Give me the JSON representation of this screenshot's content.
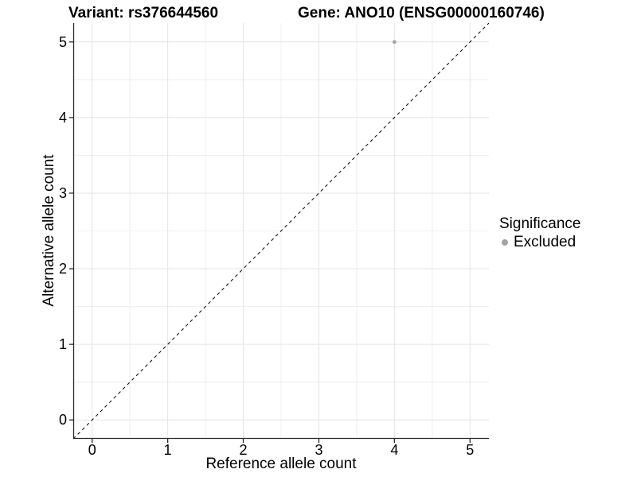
{
  "chart_data": {
    "type": "scatter",
    "title": "Variant: rs376644560          Gene: ANO10 (ENSG00000160746)",
    "title_parts": [
      "Variant: rs376644560",
      "Gene: ANO10 (ENSG00000160746)"
    ],
    "xlabel": "Reference allele count",
    "ylabel": "Alternative allele count",
    "xlim": [
      -0.25,
      5.25
    ],
    "ylim": [
      -0.25,
      5.25
    ],
    "x_ticks": [
      0,
      1,
      2,
      3,
      4,
      5
    ],
    "y_ticks": [
      0,
      1,
      2,
      3,
      4,
      5
    ],
    "grid": {
      "show": true,
      "major_color": "#e4e4e4",
      "minor_color": "#f0f0f0",
      "minor_offset": 0.5
    },
    "axis_color": "#2a2a2a",
    "background": "#ffffff",
    "reference_line": {
      "type": "identity",
      "slope": 1,
      "intercept": 0,
      "style": "dashed",
      "color": "#000000"
    },
    "series": [
      {
        "name": "Excluded",
        "color": "#a3a3a3",
        "points": [
          {
            "x": 4,
            "y": 5
          }
        ]
      }
    ],
    "legend": {
      "title": "Significance",
      "position": "right",
      "entries": [
        {
          "label": "Excluded",
          "color": "#a3a3a3"
        }
      ]
    }
  }
}
